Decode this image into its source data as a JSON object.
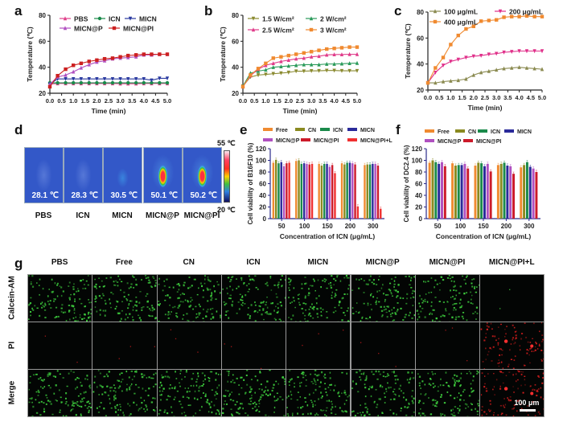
{
  "panels": {
    "a": "a",
    "b": "b",
    "c": "c",
    "d": "d",
    "e": "e",
    "f": "f",
    "g": "g"
  },
  "chart_data": [
    {
      "id": "a",
      "type": "line",
      "title": "",
      "xlabel": "Time (min)",
      "ylabel": "Temperature (℃)",
      "xlim": [
        0,
        5
      ],
      "ylim": [
        20,
        80
      ],
      "xticks": [
        "0.0",
        "0.5",
        "1.0",
        "1.5",
        "2.0",
        "2.5",
        "3.0",
        "3.5",
        "4.0",
        "4.5",
        "5.0"
      ],
      "yticks": [
        "20",
        "40",
        "60",
        "80"
      ],
      "legend": "top",
      "x": [
        0,
        0.33,
        0.67,
        1.0,
        1.33,
        1.67,
        2.0,
        2.33,
        2.67,
        3.0,
        3.33,
        3.67,
        4.0,
        4.33,
        4.67,
        5.0
      ],
      "series": [
        {
          "name": "PBS",
          "color": "#e0408a",
          "marker": "triangle",
          "values": [
            27,
            27.5,
            27.5,
            27.5,
            27.5,
            27.5,
            27.5,
            27.5,
            27.5,
            27.3,
            27.3,
            27.3,
            27.5,
            27.5,
            27.5,
            27.5
          ]
        },
        {
          "name": "ICN",
          "color": "#1a8a4a",
          "marker": "circle",
          "values": [
            28,
            28,
            28,
            28,
            28,
            28,
            28,
            28,
            28,
            28,
            28,
            28,
            28,
            28,
            28,
            28
          ]
        },
        {
          "name": "MICN",
          "color": "#2a3aa0",
          "marker": "triangle-down",
          "values": [
            27,
            31,
            31,
            31,
            31,
            31,
            31,
            31,
            31,
            31,
            31,
            31,
            31,
            30,
            31.5,
            31.5
          ]
        },
        {
          "name": "MICN@P",
          "color": "#b050c0",
          "marker": "triangle",
          "values": [
            27,
            32.5,
            34,
            36.5,
            39.5,
            42,
            44,
            45,
            46.5,
            47,
            47.5,
            48,
            49.5,
            49.5,
            50,
            50
          ]
        },
        {
          "name": "MICN@PI",
          "color": "#cc2020",
          "marker": "square",
          "values": [
            25,
            33.5,
            38.5,
            41.5,
            43,
            44.5,
            45.5,
            46.5,
            47,
            48,
            49,
            49.5,
            50,
            50,
            50,
            50
          ]
        }
      ]
    },
    {
      "id": "b",
      "type": "line",
      "title": "",
      "xlabel": "Time (min)",
      "ylabel": "Temperature (℃)",
      "xlim": [
        0,
        5
      ],
      "ylim": [
        20,
        80
      ],
      "xticks": [
        "0.0",
        "0.5",
        "1.0",
        "1.5",
        "2.0",
        "2.5",
        "3.0",
        "3.5",
        "4.0",
        "4.5",
        "5.0"
      ],
      "yticks": [
        "20",
        "40",
        "60",
        "80"
      ],
      "legend": "top",
      "x": [
        0,
        0.33,
        0.67,
        1.0,
        1.33,
        1.67,
        2.0,
        2.33,
        2.67,
        3.0,
        3.33,
        3.67,
        4.0,
        4.33,
        4.67,
        5.0
      ],
      "series": [
        {
          "name": "1.5 W/cm²",
          "color": "#8a8a30",
          "marker": "triangle-down",
          "values": [
            25.5,
            32.5,
            34,
            34.5,
            35,
            35.5,
            36,
            37,
            37,
            37.2,
            37.3,
            37.5,
            37.5,
            37.3,
            37.3,
            37.3
          ]
        },
        {
          "name": "2 W/cm²",
          "color": "#2a9a5a",
          "marker": "triangle",
          "values": [
            25.5,
            35.5,
            37,
            38,
            40,
            40.5,
            41,
            41.5,
            42,
            42,
            42,
            42.5,
            42.5,
            42.7,
            43,
            43.2
          ]
        },
        {
          "name": "2.5 W/cm²",
          "color": "#e03c8a",
          "marker": "triangle",
          "values": [
            25,
            33.5,
            38.5,
            41.5,
            43,
            44.5,
            45.5,
            46.5,
            47,
            48,
            48.5,
            49.5,
            49.8,
            49.8,
            50,
            50
          ]
        },
        {
          "name": "3 W/cm²",
          "color": "#f08a30",
          "marker": "square",
          "values": [
            25,
            34,
            39,
            43,
            47,
            48,
            49,
            50,
            51,
            52,
            53,
            54,
            54.5,
            55,
            55.5,
            55.5
          ]
        }
      ]
    },
    {
      "id": "c",
      "type": "line",
      "title": "",
      "xlabel": "Time (min)",
      "ylabel": "Temperature (℃)",
      "xlim": [
        0,
        5
      ],
      "ylim": [
        20,
        80
      ],
      "xticks": [
        "0.0",
        "0.5",
        "1.0",
        "1.5",
        "2.0",
        "2.5",
        "3.0",
        "3.5",
        "4.0",
        "4.5",
        "5.0"
      ],
      "yticks": [
        "20",
        "40",
        "60",
        "80"
      ],
      "legend": "top",
      "x": [
        0,
        0.33,
        0.67,
        1.0,
        1.33,
        1.67,
        2.0,
        2.33,
        2.67,
        3.0,
        3.33,
        3.67,
        4.0,
        4.33,
        4.67,
        5.0
      ],
      "series": [
        {
          "name": "100 μg/mL",
          "color": "#8a8a50",
          "marker": "triangle",
          "values": [
            25.5,
            25.5,
            26.5,
            27,
            27.5,
            28.5,
            31.5,
            33.5,
            34.5,
            35.5,
            36.5,
            37,
            37.5,
            37,
            36.5,
            36
          ]
        },
        {
          "name": "200 μg/mL",
          "color": "#e0308a",
          "marker": "triangle-down",
          "values": [
            25.5,
            33.5,
            39,
            42,
            43.5,
            45,
            46,
            46.5,
            47.5,
            48,
            49,
            49.5,
            50,
            50,
            50,
            50
          ]
        },
        {
          "name": "400 μg/mL",
          "color": "#f08a30",
          "marker": "square",
          "values": [
            25.5,
            37,
            45,
            55,
            62,
            67,
            69,
            73,
            73.5,
            74,
            76,
            76.5,
            76.5,
            77,
            76.5,
            76.5
          ]
        }
      ]
    },
    {
      "id": "e",
      "type": "bar",
      "title": "",
      "xlabel": "Concentration of ICN (μg/mL)",
      "ylabel": "Cell viability of B16F10 (%)",
      "ylim": [
        0,
        120
      ],
      "yticks": [
        "0",
        "20",
        "40",
        "60",
        "80",
        "100",
        "120"
      ],
      "categories": [
        "50",
        "100",
        "150",
        "200",
        "300"
      ],
      "legend": "top",
      "series": [
        {
          "name": "Free",
          "color": "#f08a30",
          "values": [
            96,
            99,
            94,
            95,
            92
          ]
        },
        {
          "name": "CN",
          "color": "#8a8a20",
          "values": [
            101,
            100,
            91,
            93,
            93
          ]
        },
        {
          "name": "ICN",
          "color": "#1a8a4a",
          "values": [
            95,
            94,
            94,
            96,
            93
          ]
        },
        {
          "name": "MICN",
          "color": "#2a2a9a",
          "values": [
            97,
            95,
            94,
            96,
            94
          ]
        },
        {
          "name": "MICN@P",
          "color": "#b050c0",
          "values": [
            90,
            94,
            89,
            95,
            94
          ]
        },
        {
          "name": "MICN@PI",
          "color": "#cc1a2a",
          "values": [
            95,
            93,
            92,
            93,
            91
          ]
        },
        {
          "name": "MICN@PI+L",
          "color": "#f03030",
          "values": [
            96,
            94,
            78,
            21,
            17
          ]
        }
      ]
    },
    {
      "id": "f",
      "type": "bar",
      "title": "",
      "xlabel": "Concentration of ICN (μg/mL)",
      "ylabel": "Cell viability of DC2.4 (%)",
      "ylim": [
        0,
        120
      ],
      "yticks": [
        "0",
        "20",
        "40",
        "60",
        "80",
        "100",
        "120"
      ],
      "categories": [
        "50",
        "100",
        "150",
        "200",
        "300"
      ],
      "legend": "top",
      "series": [
        {
          "name": "Free",
          "color": "#f08a30",
          "values": [
            96,
            95,
            91,
            92,
            88
          ]
        },
        {
          "name": "CN",
          "color": "#8a8a20",
          "values": [
            100,
            91,
            96,
            94,
            92
          ]
        },
        {
          "name": "ICN",
          "color": "#1a8a4a",
          "values": [
            97,
            92,
            95,
            96,
            97
          ]
        },
        {
          "name": "MICN",
          "color": "#2a2a9a",
          "values": [
            94,
            92,
            90,
            91,
            89
          ]
        },
        {
          "name": "MICN@P",
          "color": "#b050c0",
          "values": [
            97,
            94,
            94,
            90,
            86
          ]
        },
        {
          "name": "MICN@PI",
          "color": "#cc1a2a",
          "values": [
            90,
            86,
            81,
            77,
            80
          ]
        }
      ]
    },
    {
      "id": "d",
      "type": "heatmap",
      "title": "",
      "colorbar": {
        "max_label": "55 ℃",
        "min_label": "20 ℃",
        "max": 55,
        "min": 20
      },
      "images": [
        {
          "label": "PBS",
          "temperature": "28.1 ℃",
          "value": 28.1
        },
        {
          "label": "ICN",
          "temperature": "28.3 ℃",
          "value": 28.3
        },
        {
          "label": "MICN",
          "temperature": "30.5 ℃",
          "value": 30.5
        },
        {
          "label": "MICN@P",
          "temperature": "50.1 ℃",
          "value": 50.1
        },
        {
          "label": "MICN@PI",
          "temperature": "50.2 ℃",
          "value": 50.2
        }
      ]
    }
  ],
  "panel_g": {
    "columns": [
      "PBS",
      "Free",
      "CN",
      "ICN",
      "MICN",
      "MICN@P",
      "MICN@PI",
      "MICN@PI+L"
    ],
    "rows": [
      "Calcein-AM",
      "PI",
      "Merge"
    ],
    "scale_bar": "100 μm",
    "live_color": "#3ecf3e",
    "dead_color": "#e82020"
  }
}
